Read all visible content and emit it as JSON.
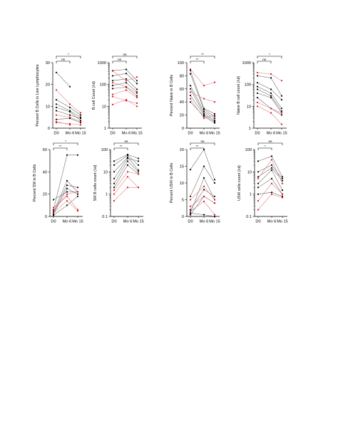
{
  "colors": {
    "black_group": "#000000",
    "red_group": "#e0141b",
    "black_line": "#666666",
    "red_line": "#e07a7e"
  },
  "chart_data": [
    {
      "type": "line",
      "ylabel": "Percent B Cells in Live Lymphocytes",
      "scale": "linear",
      "ylim": [
        0,
        30
      ],
      "yticks": [
        0,
        10,
        20,
        30
      ],
      "yticklabels": [
        "0",
        "10",
        "20",
        "30"
      ],
      "categories": [
        "D0",
        "Mo 6",
        "Mo 15"
      ],
      "significance": [
        {
          "from": 0,
          "to": 1,
          "label": "ns"
        },
        {
          "from": 0,
          "to": 2,
          "label": "*"
        }
      ],
      "series": [
        {
          "group": "black",
          "values": [
            25.5,
            19.0,
            null
          ]
        },
        {
          "group": "black",
          "values": [
            13.0,
            9.5,
            6.0
          ]
        },
        {
          "group": "black",
          "values": [
            11.0,
            8.0,
            5.0
          ]
        },
        {
          "group": "black",
          "values": [
            9.5,
            7.5,
            3.5
          ]
        },
        {
          "group": "black",
          "values": [
            8.0,
            6.0,
            4.5
          ]
        },
        {
          "group": "black",
          "values": [
            4.0,
            4.5,
            2.5
          ]
        },
        {
          "group": "red",
          "values": [
            17.5,
            11.0,
            7.0
          ]
        },
        {
          "group": "red",
          "values": [
            6.0,
            5.0,
            3.0
          ]
        },
        {
          "group": "red",
          "values": [
            2.5,
            2.0,
            1.5
          ]
        },
        {
          "group": "red",
          "values": [
            3.0,
            1.5,
            null
          ]
        }
      ]
    },
    {
      "type": "line",
      "ylabel": "B cell Count (/ul)",
      "scale": "log",
      "ylim": [
        1,
        1000
      ],
      "yticks": [
        1,
        10,
        100,
        1000
      ],
      "yticklabels": [
        "1",
        "10",
        "100",
        "1000"
      ],
      "categories": [
        "D0",
        "Mo 6",
        "Mo 15"
      ],
      "significance": [
        {
          "from": 0,
          "to": 1,
          "label": "ns"
        },
        {
          "from": 0,
          "to": 2,
          "label": "ns"
        }
      ],
      "series": [
        {
          "group": "black",
          "values": [
            430,
            490,
            150
          ]
        },
        {
          "group": "black",
          "values": [
            250,
            320,
            110
          ]
        },
        {
          "group": "black",
          "values": [
            150,
            180,
            60
          ]
        },
        {
          "group": "black",
          "values": [
            90,
            120,
            45
          ]
        },
        {
          "group": "black",
          "values": [
            65,
            75,
            30
          ]
        },
        {
          "group": "red",
          "values": [
            420,
            150,
            220
          ]
        },
        {
          "group": "red",
          "values": [
            120,
            80,
            40
          ]
        },
        {
          "group": "red",
          "values": [
            35,
            55,
            25
          ]
        },
        {
          "group": "red",
          "values": [
            28,
            18,
            14
          ]
        },
        {
          "group": "red",
          "values": [
            12,
            20,
            10
          ]
        }
      ]
    },
    {
      "type": "line",
      "ylabel": "Percent Naive in B Cells",
      "scale": "linear",
      "ylim": [
        0,
        100
      ],
      "yticks": [
        0,
        20,
        40,
        60,
        80,
        100
      ],
      "yticklabels": [
        "0",
        "20",
        "40",
        "60",
        "80",
        "100"
      ],
      "categories": [
        "D0",
        "Mo 6",
        "Mo 15"
      ],
      "significance": [
        {
          "from": 0,
          "to": 1,
          "label": "**"
        },
        {
          "from": 0,
          "to": 2,
          "label": "**"
        }
      ],
      "series": [
        {
          "group": "black",
          "values": [
            88,
            30,
            22
          ]
        },
        {
          "group": "black",
          "values": [
            83,
            28,
            18
          ]
        },
        {
          "group": "black",
          "values": [
            65,
            25,
            15
          ]
        },
        {
          "group": "black",
          "values": [
            60,
            22,
            12
          ]
        },
        {
          "group": "black",
          "values": [
            50,
            20,
            10
          ]
        },
        {
          "group": "black",
          "values": [
            40,
            18,
            8
          ]
        },
        {
          "group": "red",
          "values": [
            90,
            65,
            70
          ]
        },
        {
          "group": "red",
          "values": [
            55,
            45,
            40
          ]
        },
        {
          "group": "red",
          "values": [
            45,
            15,
            20
          ]
        }
      ]
    },
    {
      "type": "line",
      "ylabel": "Naive B cell count (/ul)",
      "scale": "log",
      "ylim": [
        1,
        1000
      ],
      "yticks": [
        1,
        10,
        100,
        1000
      ],
      "yticklabels": [
        "1",
        "10",
        "100",
        "1000"
      ],
      "categories": [
        "D0",
        "Mo 6",
        "Mo 15"
      ],
      "significance": [
        {
          "from": 0,
          "to": 1,
          "label": "ns"
        },
        {
          "from": 0,
          "to": 2,
          "label": "*"
        }
      ],
      "series": [
        {
          "group": "black",
          "values": [
            250,
            200,
            30
          ]
        },
        {
          "group": "black",
          "values": [
            120,
            60,
            20
          ]
        },
        {
          "group": "black",
          "values": [
            80,
            40,
            8
          ]
        },
        {
          "group": "black",
          "values": [
            60,
            30,
            6
          ]
        },
        {
          "group": "black",
          "values": [
            40,
            25,
            5
          ]
        },
        {
          "group": "black",
          "values": [
            25,
            8,
            4
          ]
        },
        {
          "group": "red",
          "values": [
            350,
            300,
            150
          ]
        },
        {
          "group": "red",
          "values": [
            15,
            8,
            5
          ]
        },
        {
          "group": "red",
          "values": [
            10,
            5,
            1.5
          ]
        }
      ]
    },
    {
      "type": "line",
      "ylabel": "Percent SM in B Cells",
      "scale": "linear",
      "ylim": [
        0,
        60
      ],
      "yticks": [
        0,
        20,
        40,
        60
      ],
      "yticklabels": [
        "0",
        "20",
        "40",
        "60"
      ],
      "categories": [
        "D0",
        "Mo 6",
        "Mo 15"
      ],
      "significance": [
        {
          "from": 0,
          "to": 1,
          "label": "**"
        },
        {
          "from": 0,
          "to": 2,
          "label": "*"
        }
      ],
      "series": [
        {
          "group": "black",
          "values": [
            6,
            55,
            55
          ]
        },
        {
          "group": "black",
          "values": [
            4,
            32,
            22
          ]
        },
        {
          "group": "black",
          "values": [
            3,
            28,
            26
          ]
        },
        {
          "group": "black",
          "values": [
            2,
            25,
            20
          ]
        },
        {
          "group": "black",
          "values": [
            15,
            22,
            22
          ]
        },
        {
          "group": "black",
          "values": [
            1,
            10,
            18
          ]
        },
        {
          "group": "red",
          "values": [
            5,
            20,
            22
          ]
        },
        {
          "group": "red",
          "values": [
            8,
            18,
            6
          ]
        },
        {
          "group": "red",
          "values": [
            3,
            14,
            5
          ]
        }
      ]
    },
    {
      "type": "line",
      "ylabel": "SM B cells count (/ul)",
      "scale": "log",
      "ylim": [
        0.1,
        100
      ],
      "yticks": [
        0.1,
        1,
        10,
        100
      ],
      "yticklabels": [
        "0.1",
        "1",
        "10",
        "100"
      ],
      "categories": [
        "D0",
        "Mo 6",
        "Mo 15"
      ],
      "significance": [
        {
          "from": 0,
          "to": 1,
          "label": "**"
        },
        {
          "from": 0,
          "to": 2,
          "label": "ns"
        }
      ],
      "series": [
        {
          "group": "black",
          "values": [
            30,
            60,
            40
          ]
        },
        {
          "group": "black",
          "values": [
            20,
            55,
            20
          ]
        },
        {
          "group": "black",
          "values": [
            10,
            45,
            12
          ]
        },
        {
          "group": "black",
          "values": [
            5,
            40,
            30
          ]
        },
        {
          "group": "black",
          "values": [
            3,
            30,
            10
          ]
        },
        {
          "group": "black",
          "values": [
            2,
            20,
            8
          ]
        },
        {
          "group": "red",
          "values": [
            1.5,
            10,
            8
          ]
        },
        {
          "group": "red",
          "values": [
            1.0,
            6,
            2
          ]
        },
        {
          "group": "red",
          "values": [
            0.5,
            2,
            2
          ]
        }
      ]
    },
    {
      "type": "line",
      "ylabel": "Percent USM in B Cells",
      "scale": "linear",
      "ylim": [
        0,
        20
      ],
      "yticks": [
        0,
        5,
        10,
        15,
        20
      ],
      "yticklabels": [
        "0",
        "5",
        "10",
        "15",
        "20"
      ],
      "categories": [
        "D0",
        "Mo 6",
        "Mo 15"
      ],
      "significance": [
        {
          "from": 0,
          "to": 1,
          "label": "**"
        },
        {
          "from": 0,
          "to": 2,
          "label": "ns"
        }
      ],
      "series": [
        {
          "group": "black",
          "values": [
            14,
            20,
            11
          ]
        },
        {
          "group": "black",
          "values": [
            6,
            15,
            10
          ]
        },
        {
          "group": "black",
          "values": [
            1,
            11.5,
            5
          ]
        },
        {
          "group": "black",
          "values": [
            2,
            8,
            6
          ]
        },
        {
          "group": "black",
          "values": [
            0.5,
            6,
            4
          ]
        },
        {
          "group": "black",
          "values": [
            1,
            0.5,
            0
          ]
        },
        {
          "group": "red",
          "values": [
            5,
            9,
            5
          ]
        },
        {
          "group": "red",
          "values": [
            3,
            6,
            4
          ]
        },
        {
          "group": "red",
          "values": [
            1.5,
            4.5,
            0.5
          ]
        }
      ]
    },
    {
      "type": "line",
      "ylabel": "USM cells count (/ul)",
      "scale": "log",
      "ylim": [
        0.1,
        100
      ],
      "yticks": [
        0.1,
        1,
        10,
        100
      ],
      "yticklabels": [
        "0.1",
        "1",
        "10",
        "100"
      ],
      "categories": [
        "D0",
        "Mo 6",
        "Mo 15"
      ],
      "significance": [
        {
          "from": 0,
          "to": 1,
          "label": "*"
        },
        {
          "from": 0,
          "to": 2,
          "label": "ns"
        }
      ],
      "series": [
        {
          "group": "black",
          "values": [
            30,
            50,
            6
          ]
        },
        {
          "group": "black",
          "values": [
            10,
            20,
            5
          ]
        },
        {
          "group": "black",
          "values": [
            6,
            15,
            4
          ]
        },
        {
          "group": "black",
          "values": [
            3,
            12,
            1.5
          ]
        },
        {
          "group": "black",
          "values": [
            2,
            5,
            1
          ]
        },
        {
          "group": "black",
          "values": [
            1,
            1.2,
            0.8
          ]
        },
        {
          "group": "red",
          "values": [
            5,
            35,
            3
          ]
        },
        {
          "group": "red",
          "values": [
            0.5,
            3,
            1
          ]
        },
        {
          "group": "red",
          "values": [
            0.2,
            1,
            0.7
          ]
        }
      ]
    }
  ]
}
